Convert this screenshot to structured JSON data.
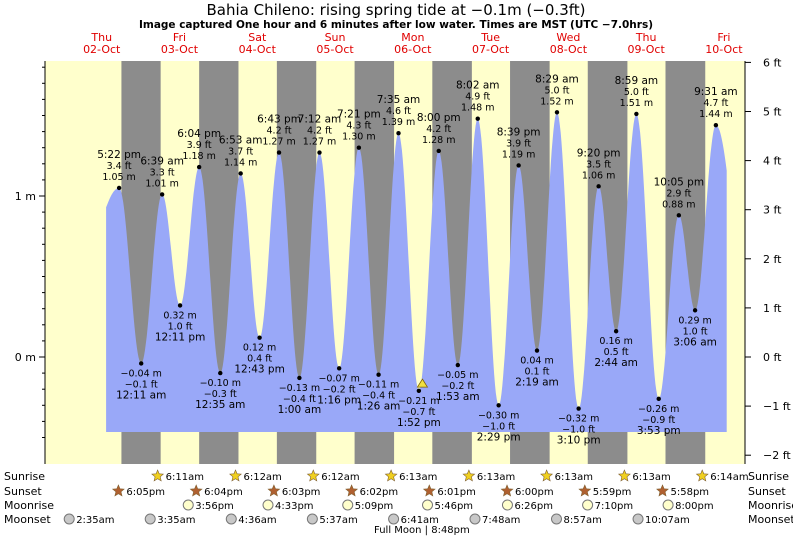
{
  "header": {
    "title": "Bahia Chileno: rising  spring tide at −0.1m (−0.3ft)",
    "subtitle": "Image captured One hour and 6 minutes after low water. Times are MST (UTC −7.0hrs)"
  },
  "days": [
    {
      "name": "Thu",
      "date": "02-Oct"
    },
    {
      "name": "Fri",
      "date": "03-Oct"
    },
    {
      "name": "Sat",
      "date": "04-Oct"
    },
    {
      "name": "Sun",
      "date": "05-Oct"
    },
    {
      "name": "Mon",
      "date": "06-Oct"
    },
    {
      "name": "Tue",
      "date": "07-Oct"
    },
    {
      "name": "Wed",
      "date": "08-Oct"
    },
    {
      "name": "Thu",
      "date": "09-Oct"
    },
    {
      "name": "Fri",
      "date": "10-Oct"
    }
  ],
  "colors": {
    "day_band": "#ffffcc",
    "night_band": "#8c8c8c",
    "tide_fill": "#99a8f8",
    "day_label": "#e00000",
    "sun_star": "#f0d020",
    "sunset_star": "#b06030",
    "moon_fill": "#ffffcc",
    "moonset_fill": "#c8c8c8"
  },
  "chart_data": {
    "type": "area",
    "title": "Bahia Chileno: rising  spring tide at −0.1m (−0.3ft)",
    "left_axis": {
      "unit": "m",
      "ticks": [
        "0 m",
        "1 m"
      ],
      "range_m": [
        -0.58,
        1.85
      ]
    },
    "right_axis": {
      "unit": "ft",
      "ticks": [
        "−2 ft",
        "−1 ft",
        "0 ft",
        "1 ft",
        "2 ft",
        "3 ft",
        "4 ft",
        "5 ft",
        "6 ft"
      ]
    },
    "x_range_hours_from_thu_02_oct_0000": [
      -5.5,
      210.5
    ],
    "extremes": [
      {
        "type": "high",
        "time": "5:22 pm",
        "m": "1.05 m",
        "ft": "3.4 ft"
      },
      {
        "type": "low",
        "time": "12:11 am",
        "m": "−0.04 m",
        "ft": "−0.1 ft"
      },
      {
        "type": "high",
        "time": "6:39 am",
        "m": "1.01 m",
        "ft": "3.3 ft"
      },
      {
        "type": "low",
        "time": "12:11 pm",
        "m": "0.32 m",
        "ft": "1.0 ft"
      },
      {
        "type": "high",
        "time": "6:04 pm",
        "m": "1.18 m",
        "ft": "3.9 ft"
      },
      {
        "type": "low",
        "time": "12:35 am",
        "m": "−0.10 m",
        "ft": "−0.3 ft"
      },
      {
        "type": "high",
        "time": "6:53 am",
        "m": "1.14 m",
        "ft": "3.7 ft"
      },
      {
        "type": "low",
        "time": "12:43 pm",
        "m": "0.12 m",
        "ft": "0.4 ft"
      },
      {
        "type": "high",
        "time": "6:43 pm",
        "m": "1.27 m",
        "ft": "4.2 ft"
      },
      {
        "type": "low",
        "time": "1:00 am",
        "m": "−0.13 m",
        "ft": "−0.4 ft"
      },
      {
        "type": "high",
        "time": "7:12 am",
        "m": "1.27 m",
        "ft": "4.2 ft"
      },
      {
        "type": "low",
        "time": "1:16 pm",
        "m": "−0.07 m",
        "ft": "−0.2 ft"
      },
      {
        "type": "high",
        "time": "7:21 pm",
        "m": "1.30 m",
        "ft": "4.3 ft"
      },
      {
        "type": "low",
        "time": "1:26 am",
        "m": "−0.11 m",
        "ft": "−0.4 ft"
      },
      {
        "type": "high",
        "time": "7:35 am",
        "m": "1.39 m",
        "ft": "4.6 ft"
      },
      {
        "type": "low",
        "time": "1:52 pm",
        "m": "−0.21 m",
        "ft": "−0.7 ft"
      },
      {
        "type": "high",
        "time": "8:00 pm",
        "m": "1.28 m",
        "ft": "4.2 ft"
      },
      {
        "type": "low",
        "time": "1:53 am",
        "m": "−0.05 m",
        "ft": "−0.2 ft"
      },
      {
        "type": "high",
        "time": "8:02 am",
        "m": "1.48 m",
        "ft": "4.9 ft"
      },
      {
        "type": "low",
        "time": "2:29 pm",
        "m": "−0.30 m",
        "ft": "−1.0 ft"
      },
      {
        "type": "high",
        "time": "8:39 pm",
        "m": "1.19 m",
        "ft": "3.9 ft"
      },
      {
        "type": "low",
        "time": "2:19 am",
        "m": "0.04 m",
        "ft": "0.1 ft"
      },
      {
        "type": "high",
        "time": "8:29 am",
        "m": "1.52 m",
        "ft": "5.0 ft"
      },
      {
        "type": "low",
        "time": "3:10 pm",
        "m": "−0.32 m",
        "ft": "−1.0 ft"
      },
      {
        "type": "high",
        "time": "9:20 pm",
        "m": "1.06 m",
        "ft": "3.5 ft"
      },
      {
        "type": "low",
        "time": "2:44 am",
        "m": "0.16 m",
        "ft": "0.5 ft"
      },
      {
        "type": "high",
        "time": "8:59 am",
        "m": "1.51 m",
        "ft": "5.0 ft"
      },
      {
        "type": "low",
        "time": "3:53 pm",
        "m": "−0.26 m",
        "ft": "−0.9 ft"
      },
      {
        "type": "high",
        "time": "10:05 pm",
        "m": "0.88 m",
        "ft": "2.9 ft"
      },
      {
        "type": "low",
        "time": "3:06 am",
        "m": "0.29 m",
        "ft": "1.0 ft"
      },
      {
        "type": "high",
        "time": "9:31 am",
        "m": "1.44 m",
        "ft": "4.7 ft"
      }
    ],
    "now_marker_m": -0.1
  },
  "astro": {
    "labels": {
      "sunrise": "Sunrise",
      "sunset": "Sunset",
      "moonrise": "Moonrise",
      "moonset": "Moonset"
    },
    "sunrise": [
      "6:11am",
      "6:12am",
      "6:12am",
      "6:13am",
      "6:13am",
      "6:13am",
      "6:13am",
      "6:14am"
    ],
    "sunset": [
      "6:05pm",
      "6:04pm",
      "6:03pm",
      "6:02pm",
      "6:01pm",
      "6:00pm",
      "5:59pm",
      "5:58pm"
    ],
    "moonrise": [
      "3:56pm",
      "4:33pm",
      "5:09pm",
      "5:46pm",
      "6:26pm",
      "7:10pm",
      "8:00pm"
    ],
    "moonset": [
      "2:35am",
      "3:35am",
      "4:36am",
      "5:37am",
      "6:41am",
      "7:48am",
      "8:57am",
      "10:07am"
    ],
    "full_moon": "Full Moon | 8:48pm"
  }
}
